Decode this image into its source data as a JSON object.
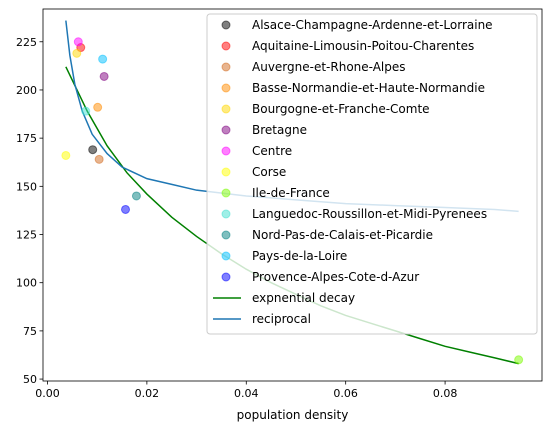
{
  "chart_data": {
    "type": "scatter",
    "title": "",
    "xlabel": "population density",
    "ylabel": "",
    "xlim": [
      -0.0009,
      0.0995
    ],
    "ylim": [
      49,
      242
    ],
    "x_ticks": [
      0.0,
      0.02,
      0.04,
      0.06,
      0.08
    ],
    "x_tick_labels": [
      "0.00",
      "0.02",
      "0.04",
      "0.06",
      "0.08"
    ],
    "y_ticks": [
      50,
      75,
      100,
      125,
      150,
      175,
      200,
      225
    ],
    "y_tick_labels": [
      "50",
      "75",
      "100",
      "125",
      "150",
      "175",
      "200",
      "225"
    ],
    "grid": false,
    "legend_position": "upper-right",
    "points": [
      {
        "name": "Alsace-Champagne-Ardenne-et-Lorraine",
        "color": "#000000",
        "x": 0.0091,
        "y": 169
      },
      {
        "name": "Aquitaine-Limousin-Poitou-Charentes",
        "color": "#ff0000",
        "x": 0.0067,
        "y": 222
      },
      {
        "name": "Auvergne-et-Rhone-Alpes",
        "color": "#d2691e",
        "x": 0.0104,
        "y": 164
      },
      {
        "name": "Basse-Normandie-et-Haute-Normandie",
        "color": "#ff8c00",
        "x": 0.0101,
        "y": 191
      },
      {
        "name": "Bourgogne-et-Franche-Comte",
        "color": "#ffd700",
        "x": 0.0059,
        "y": 219
      },
      {
        "name": "Bretagne",
        "color": "#800080",
        "x": 0.0114,
        "y": 207
      },
      {
        "name": "Centre",
        "color": "#ff00ff",
        "x": 0.0062,
        "y": 225
      },
      {
        "name": "Corse",
        "color": "#ffff00",
        "x": 0.0037,
        "y": 166
      },
      {
        "name": "Ile-de-France",
        "color": "#7cfc00",
        "x": 0.0948,
        "y": 60
      },
      {
        "name": "Languedoc-Roussillon-et-Midi-Pyrenees",
        "color": "#40e0d0",
        "x": 0.0077,
        "y": 189
      },
      {
        "name": "Nord-Pas-de-Calais-et-Picardie",
        "color": "#008080",
        "x": 0.0179,
        "y": 145
      },
      {
        "name": "Pays-de-la-Loire",
        "color": "#00bfff",
        "x": 0.0111,
        "y": 216
      },
      {
        "name": "Provence-Alpes-Cote-d-Azur",
        "color": "#0000ff",
        "x": 0.0157,
        "y": 138
      }
    ],
    "series": [
      {
        "name": "expnential decay",
        "type": "line",
        "color": "#008000",
        "x": [
          0.0037,
          0.008,
          0.012,
          0.016,
          0.02,
          0.025,
          0.03,
          0.035,
          0.04,
          0.045,
          0.05,
          0.055,
          0.06,
          0.065,
          0.07,
          0.075,
          0.08,
          0.085,
          0.09,
          0.0948
        ],
        "y": [
          212,
          189,
          171,
          157,
          146,
          134,
          124,
          115,
          107,
          100,
          94,
          88,
          83,
          79,
          75,
          71,
          67,
          64,
          61,
          58
        ]
      },
      {
        "name": "reciprocal",
        "type": "line",
        "color": "#1f77b4",
        "x": [
          0.0037,
          0.0045,
          0.0055,
          0.007,
          0.009,
          0.012,
          0.015,
          0.02,
          0.025,
          0.03,
          0.04,
          0.05,
          0.06,
          0.07,
          0.08,
          0.09,
          0.0948
        ],
        "y": [
          236,
          218,
          203,
          189,
          177,
          167,
          160,
          154,
          151,
          148,
          145,
          143,
          141,
          140,
          139,
          138,
          137
        ]
      }
    ]
  }
}
